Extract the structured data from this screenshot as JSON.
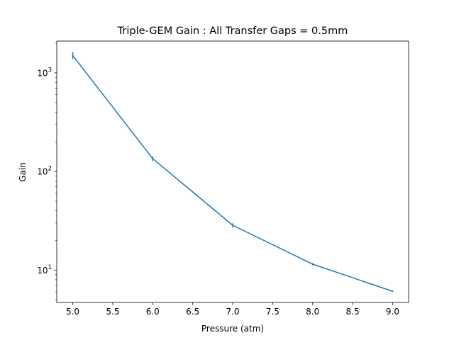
{
  "chart_data": {
    "type": "line",
    "title": "Triple-GEM Gain : All Transfer Gaps = 0.5mm",
    "xlabel": "Pressure (atm)",
    "ylabel": "Gain",
    "x_ticks": [
      "5.0",
      "5.5",
      "6.0",
      "6.5",
      "7.0",
      "7.5",
      "8.0",
      "8.5",
      "9.0"
    ],
    "y_ticks": [
      {
        "value": 10,
        "base": "10",
        "exp": "1"
      },
      {
        "value": 100,
        "base": "10",
        "exp": "2"
      },
      {
        "value": 1000,
        "base": "10",
        "exp": "3"
      }
    ],
    "xlim": [
      4.8,
      9.2
    ],
    "ylim": [
      4.7,
      2100
    ],
    "yscale": "log",
    "grid": false,
    "series": [
      {
        "color": "#1f77b4",
        "points": [
          {
            "x": 5.0,
            "y": 1500,
            "yerr": [
              1380,
              1630
            ]
          },
          {
            "x": 6.0,
            "y": 135,
            "yerr": [
              128,
              142
            ]
          },
          {
            "x": 7.0,
            "y": 28.5,
            "yerr": [
              27.2,
              29.8
            ]
          },
          {
            "x": 8.0,
            "y": 11.5,
            "yerr": [
              11.2,
              11.8
            ]
          },
          {
            "x": 9.0,
            "y": 6.1,
            "yerr": [
              6.0,
              6.2
            ]
          }
        ]
      }
    ]
  }
}
